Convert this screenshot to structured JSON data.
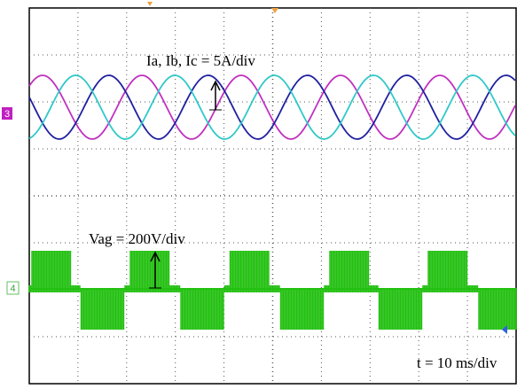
{
  "labels": {
    "currents": "Ia, Ib, Ic = 5A/div",
    "voltage": "Vag = 200V/div",
    "time": "t = 10 ms/div"
  },
  "channels": {
    "ch3": "3",
    "ch4": "4"
  }
}
